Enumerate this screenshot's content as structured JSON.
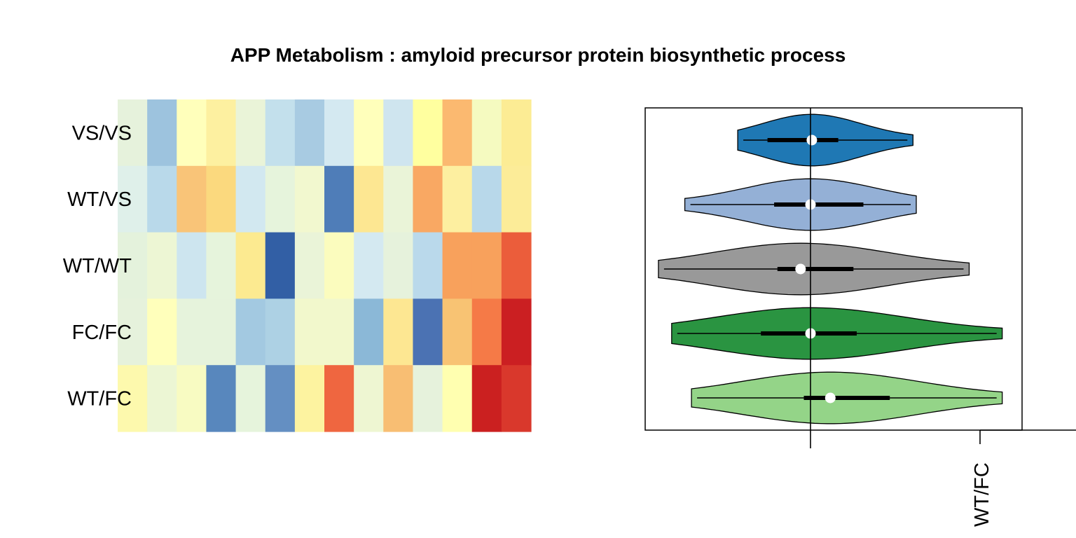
{
  "title": "APP Metabolism : amyloid precursor protein biosynthetic process",
  "chart_data": [
    {
      "type": "heatmap",
      "rows": [
        "VS/VS",
        "WT/VS",
        "WT/WT",
        "FC/FC",
        "WT/FC"
      ],
      "columns": 14,
      "colors": [
        [
          "#e6f2dc",
          "#9dc3de",
          "#ffffbb",
          "#fdf0a0",
          "#eaf4d8",
          "#c3e0ec",
          "#a8cbe2",
          "#d4e9f1",
          "#ffffbb",
          "#cfe5ef",
          "#ffff9f",
          "#fbb970",
          "#f5fac0",
          "#fcec94"
        ],
        [
          "#dff0ea",
          "#b9d9ea",
          "#f9c478",
          "#fbd97e",
          "#d2e8f0",
          "#e6f4dc",
          "#f2f8cf",
          "#4f7db8",
          "#fde792",
          "#eaf4d8",
          "#f9a863",
          "#fdefa0",
          "#b8d8ea",
          "#fcec98"
        ],
        [
          "#e4f2dc",
          "#edf6d4",
          "#cde5ef",
          "#e6f4dc",
          "#fcea90",
          "#325fa5",
          "#eaf4d8",
          "#fbfcbe",
          "#d4e9f1",
          "#e6f2dc",
          "#bad9eb",
          "#f8a15c",
          "#f8a15c",
          "#eb5d3b"
        ],
        [
          "#e6f2dc",
          "#ffffbb",
          "#e6f3dc",
          "#e6f3dc",
          "#a3c9e1",
          "#add1e4",
          "#f2f8cc",
          "#f2f8cc",
          "#8bb8d7",
          "#fde792",
          "#4b72b3",
          "#f8c373",
          "#f57a47",
          "#cb1f22"
        ],
        [
          "#fdf9ad",
          "#ecf6d4",
          "#f8fbc2",
          "#5887bd",
          "#e6f4dc",
          "#648fc2",
          "#fdf3a0",
          "#ef6640",
          "#eef6d2",
          "#f8be73",
          "#e6f2dc",
          "#ffffb0",
          "#cb2020",
          "#d9382c"
        ]
      ]
    },
    {
      "type": "violin",
      "orientation": "horizontal",
      "groups": [
        {
          "label": "VS/VS",
          "color": "#1f78b4",
          "min": -1.1,
          "q1": -0.65,
          "median": 0.02,
          "q3": 0.42,
          "max": 1.55,
          "mean": 0.02
        },
        {
          "label": "WT/VS",
          "color": "#94b0d6",
          "min": -1.9,
          "q1": -0.55,
          "median": 0.0,
          "q3": 0.8,
          "max": 1.6,
          "mean": 0.0
        },
        {
          "label": "WT/WT",
          "color": "#999999",
          "min": -2.3,
          "q1": -0.5,
          "median": -0.15,
          "q3": 0.65,
          "max": 2.4,
          "mean": -0.15
        },
        {
          "label": "FC/FC",
          "color": "#2a9441",
          "min": -2.1,
          "q1": -0.75,
          "median": 0.0,
          "q3": 0.7,
          "max": 2.9,
          "mean": 0.0
        },
        {
          "label": "WT/FC",
          "color": "#94d488",
          "min": -1.8,
          "q1": -0.1,
          "median": 0.3,
          "q3": 1.2,
          "max": 2.9,
          "mean": 0.3
        }
      ],
      "xlim": [
        -2.5,
        3.2
      ],
      "reference_line": 0,
      "axis_tick_label": "WT/FC"
    }
  ]
}
